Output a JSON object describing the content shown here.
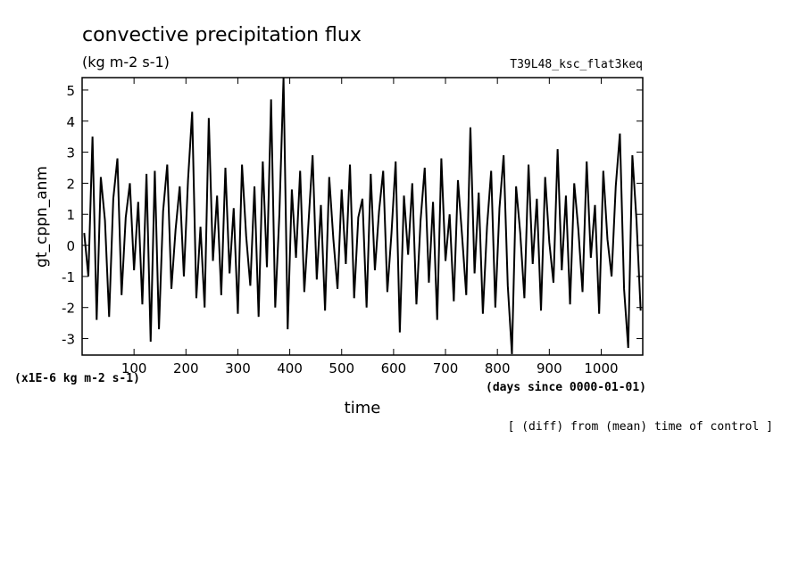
{
  "chart_data": {
    "type": "line",
    "title": "convective precipitation flux",
    "subtitle": "(kg m-2 s-1)",
    "run_label": "T39L48_ksc_flat3keq",
    "y_label": "gt_cppn_anm",
    "x_label": "time",
    "y_unit_note": "(x1E-6 kg m-2 s-1)",
    "x_unit_note": "(days since 0000-01-01)",
    "footnote": "[ (diff) from (mean) time of control ]",
    "xlim": [
      0,
      1080
    ],
    "ylim": [
      -3.53,
      5.4
    ],
    "xticks": [
      100,
      200,
      300,
      400,
      500,
      600,
      700,
      800,
      900,
      1000
    ],
    "yticks": [
      -3,
      -2,
      -1,
      0,
      1,
      2,
      3,
      4,
      5
    ],
    "x": [
      4,
      12,
      20,
      28,
      36,
      44,
      52,
      60,
      68,
      76,
      84,
      92,
      100,
      108,
      116,
      124,
      132,
      140,
      148,
      156,
      164,
      172,
      180,
      188,
      196,
      204,
      212,
      220,
      228,
      236,
      244,
      252,
      260,
      268,
      276,
      284,
      292,
      300,
      308,
      316,
      324,
      332,
      340,
      348,
      356,
      364,
      372,
      380,
      388,
      396,
      404,
      412,
      420,
      428,
      436,
      444,
      452,
      460,
      468,
      476,
      484,
      492,
      500,
      508,
      516,
      524,
      532,
      540,
      548,
      556,
      564,
      572,
      580,
      588,
      596,
      604,
      612,
      620,
      628,
      636,
      644,
      652,
      660,
      668,
      676,
      684,
      692,
      700,
      708,
      716,
      724,
      732,
      740,
      748,
      756,
      764,
      772,
      780,
      788,
      796,
      804,
      812,
      820,
      828,
      836,
      844,
      852,
      860,
      868,
      876,
      884,
      892,
      900,
      908,
      916,
      924,
      932,
      940,
      948,
      956,
      964,
      972,
      980,
      988,
      996,
      1004,
      1012,
      1020,
      1028,
      1036,
      1044,
      1052,
      1060,
      1068,
      1076
    ],
    "series": [
      {
        "color": "#000000",
        "values": [
          0.4,
          -1.0,
          3.5,
          -2.4,
          2.2,
          0.8,
          -2.3,
          1.5,
          2.8,
          -1.6,
          0.9,
          2.0,
          -0.8,
          1.4,
          -1.9,
          2.3,
          -3.1,
          2.4,
          -2.7,
          1.1,
          2.6,
          -1.4,
          0.5,
          1.9,
          -1.0,
          2.1,
          4.3,
          -1.7,
          0.6,
          -2.0,
          4.1,
          -0.5,
          1.6,
          -1.6,
          2.5,
          -0.9,
          1.2,
          -2.2,
          2.6,
          0.3,
          -1.3,
          1.9,
          -2.3,
          2.7,
          -0.7,
          4.7,
          -2.0,
          1.0,
          5.4,
          -2.7,
          1.8,
          -0.4,
          2.4,
          -1.5,
          0.7,
          2.9,
          -1.1,
          1.3,
          -2.1,
          2.2,
          0.2,
          -1.4,
          1.8,
          -0.6,
          2.6,
          -1.7,
          0.9,
          1.5,
          -2.0,
          2.3,
          -0.8,
          1.1,
          2.4,
          -1.5,
          0.4,
          2.7,
          -2.8,
          1.6,
          -0.3,
          2.0,
          -1.9,
          0.8,
          2.5,
          -1.2,
          1.4,
          -2.4,
          2.8,
          -0.5,
          1.0,
          -1.8,
          2.1,
          0.3,
          -1.6,
          3.8,
          -0.9,
          1.7,
          -2.2,
          0.6,
          2.4,
          -2.0,
          1.2,
          2.9,
          -1.3,
          -3.5,
          1.9,
          0.4,
          -1.7,
          2.6,
          -0.6,
          1.5,
          -2.1,
          2.2,
          0.1,
          -1.2,
          3.1,
          -0.8,
          1.6,
          -1.9,
          2.0,
          0.5,
          -1.5,
          2.7,
          -0.4,
          1.3,
          -2.2,
          2.4,
          0.2,
          -1.0,
          1.9,
          3.6,
          -1.4,
          -3.3,
          2.9,
          0.8,
          -2.1
        ]
      }
    ]
  }
}
